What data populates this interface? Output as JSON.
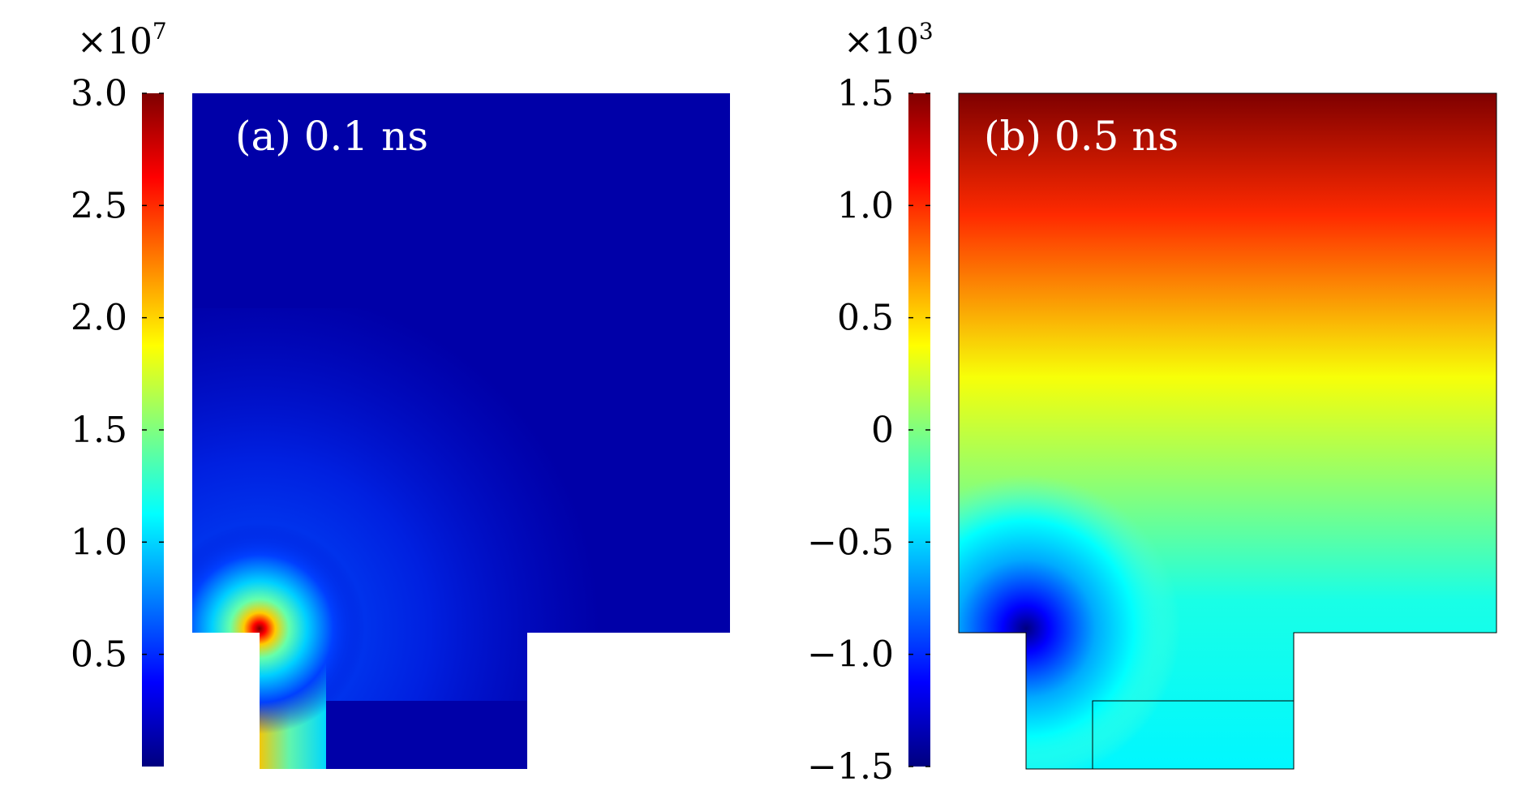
{
  "chart_data": [
    {
      "type": "heatmap",
      "annotation": "(a) 0.1 ns",
      "colorbar": {
        "multiplier_base": "×10",
        "multiplier_exponent": "7",
        "range": [
          0.0,
          3.0
        ],
        "ticks": [
          0.5,
          1.0,
          1.5,
          2.0,
          2.5,
          3.0
        ],
        "tick_labels": [
          "0.5",
          "1.0",
          "1.5",
          "2.0",
          "2.5",
          "3.0"
        ],
        "colormap": "jet"
      },
      "field_description": {
        "background_level": 0.12,
        "peak_level": 3.0,
        "peak_location": "upper inner corner of the left step",
        "notes": "field concentrated near the re-entrant corner, decaying outward"
      }
    },
    {
      "type": "heatmap",
      "annotation": "(b) 0.5 ns",
      "colorbar": {
        "multiplier_base": "×10",
        "multiplier_exponent": "3",
        "range": [
          -1.5,
          1.5
        ],
        "ticks": [
          -1.5,
          -1.0,
          -0.5,
          0,
          0.5,
          1.0,
          1.5
        ],
        "tick_labels": [
          "−1.5",
          "−1.0",
          "−0.5",
          "0",
          "0.5",
          "1.0",
          "1.5"
        ],
        "colormap": "jet"
      },
      "field_description": {
        "top_level": 1.5,
        "bottom_level": -0.4,
        "min_level": -1.5,
        "min_location": "inner corner of the left step",
        "notes": "vertical gradient from high at top to low at bottom, minimum near corner"
      }
    }
  ],
  "colors": {
    "jet_stops": [
      "#00007f",
      "#0000ff",
      "#00ffff",
      "#ffff00",
      "#ff0000",
      "#7f0000"
    ],
    "annotation": "#ffffff"
  }
}
